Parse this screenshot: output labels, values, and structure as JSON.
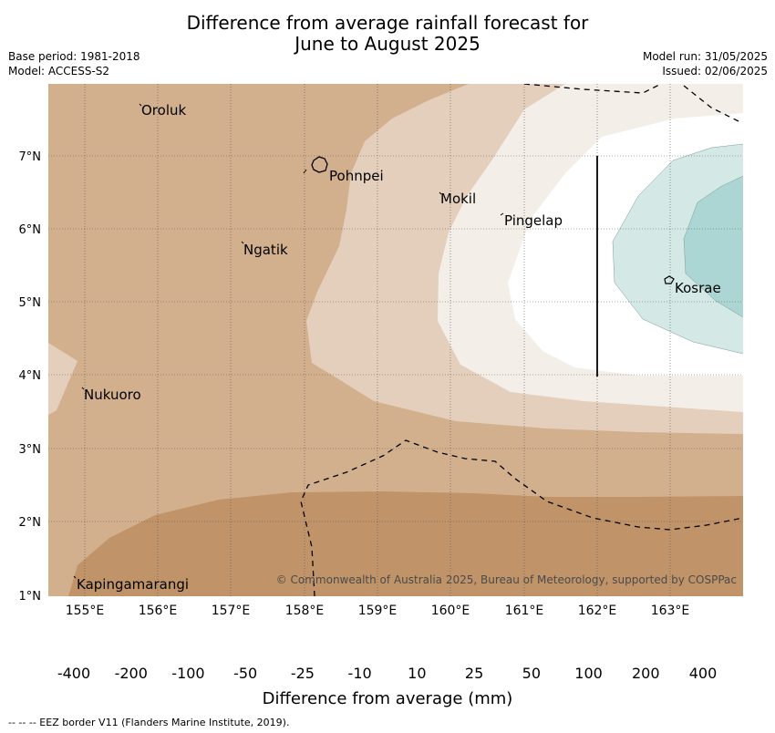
{
  "title": {
    "line1": "Difference from average rainfall forecast for",
    "line2": "June to August 2025"
  },
  "meta": {
    "base_period": "Base period: 1981-2018",
    "model": "Model: ACCESS-S2",
    "model_run": "Model run: 31/05/2025",
    "issued": "Issued: 02/06/2025"
  },
  "map": {
    "lon_labels": [
      "155°E",
      "156°E",
      "157°E",
      "158°E",
      "159°E",
      "160°E",
      "161°E",
      "162°E",
      "163°E"
    ],
    "lat_labels": [
      "7°N",
      "6°N",
      "5°N",
      "4°N",
      "3°N",
      "2°N",
      "1°N"
    ],
    "places": {
      "oroluk": "Oroluk",
      "pohnpei": "Pohnpei",
      "mokil": "Mokil",
      "pingelap": "Pingelap",
      "ngatik": "Ngatik",
      "kosrae": "Kosrae",
      "nukuoro": "Nukuoro",
      "kapingamarangi": "Kapingamarangi"
    },
    "copyright": "© Commonwealth of Australia 2025, Bureau of Meteorology, supported by COSPPac"
  },
  "colorbar": {
    "labels": [
      "-400",
      "-200",
      "-100",
      "-50",
      "-25",
      "-10",
      "10",
      "25",
      "50",
      "100",
      "200",
      "400"
    ],
    "colors": [
      "#b07a44",
      "#c09468",
      "#d2b08e",
      "#e4cfbd",
      "#f3eee8",
      "#ffffff",
      "#d4e8e6",
      "#acd6d4",
      "#80c0bd",
      "#57aaa6",
      "#339693"
    ],
    "title": "Difference from average (mm)"
  },
  "footnote": "--  --  -- EEZ border V11 (Flanders Marine Institute, 2019)."
}
